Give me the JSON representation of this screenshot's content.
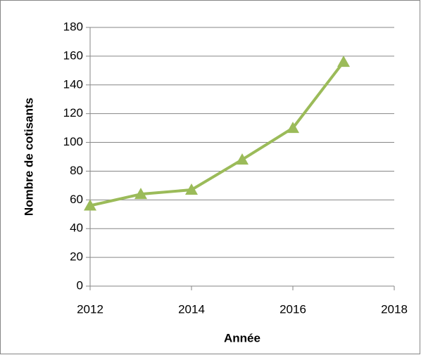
{
  "chart_data": {
    "type": "line",
    "x": [
      2012,
      2013,
      2014,
      2015,
      2016,
      2017
    ],
    "series": [
      {
        "name": "Nombre de cotisants",
        "color": "#9bbb59",
        "values": [
          56,
          64,
          67,
          88,
          110,
          156
        ]
      }
    ],
    "x_label": "Année",
    "y_label": "Nombre de cotisants",
    "xlim": [
      2012,
      2018
    ],
    "xticks": [
      2012,
      2014,
      2016,
      2018
    ],
    "ylim": [
      0,
      180
    ],
    "yticks": [
      0,
      20,
      40,
      60,
      80,
      100,
      120,
      140,
      160,
      180
    ],
    "grid": true,
    "marker": "triangle"
  }
}
